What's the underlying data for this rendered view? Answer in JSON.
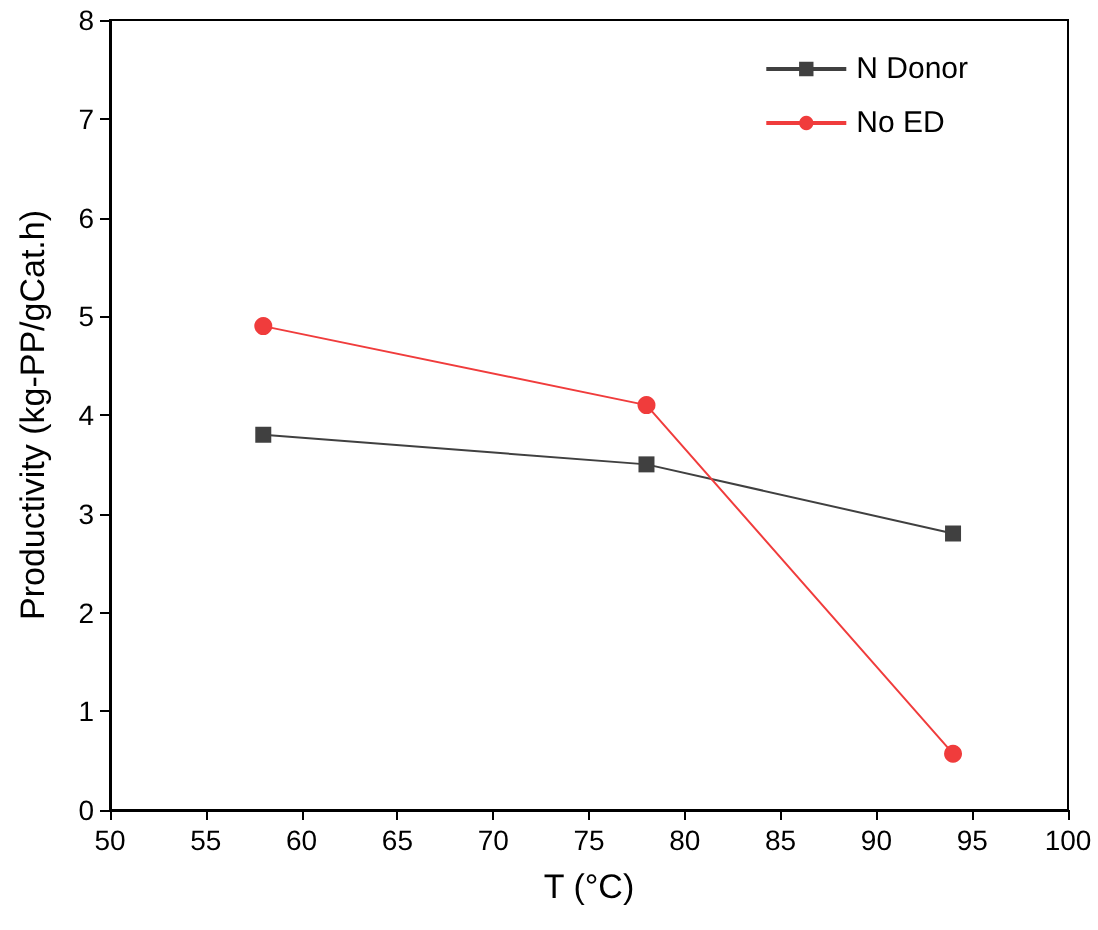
{
  "chart_data": {
    "type": "line",
    "xlabel": "T (°C)",
    "ylabel": "Productivity (kg-PP/gCat.h)",
    "x": [
      58,
      78,
      94
    ],
    "series": [
      {
        "name": "N Donor",
        "color": "#404040",
        "marker": "square",
        "values": [
          3.8,
          3.5,
          2.8
        ]
      },
      {
        "name": "No ED",
        "color": "#f03c3c",
        "marker": "circle",
        "values": [
          4.9,
          4.1,
          0.57
        ]
      }
    ],
    "xlim": [
      50,
      100
    ],
    "xticks": [
      50,
      55,
      60,
      65,
      70,
      75,
      80,
      85,
      90,
      95,
      100
    ],
    "ylim": [
      0,
      8
    ],
    "yticks": [
      0,
      1,
      2,
      3,
      4,
      5,
      6,
      7,
      8
    ],
    "grid": false,
    "legend": "top right",
    "line_style": "solid"
  }
}
